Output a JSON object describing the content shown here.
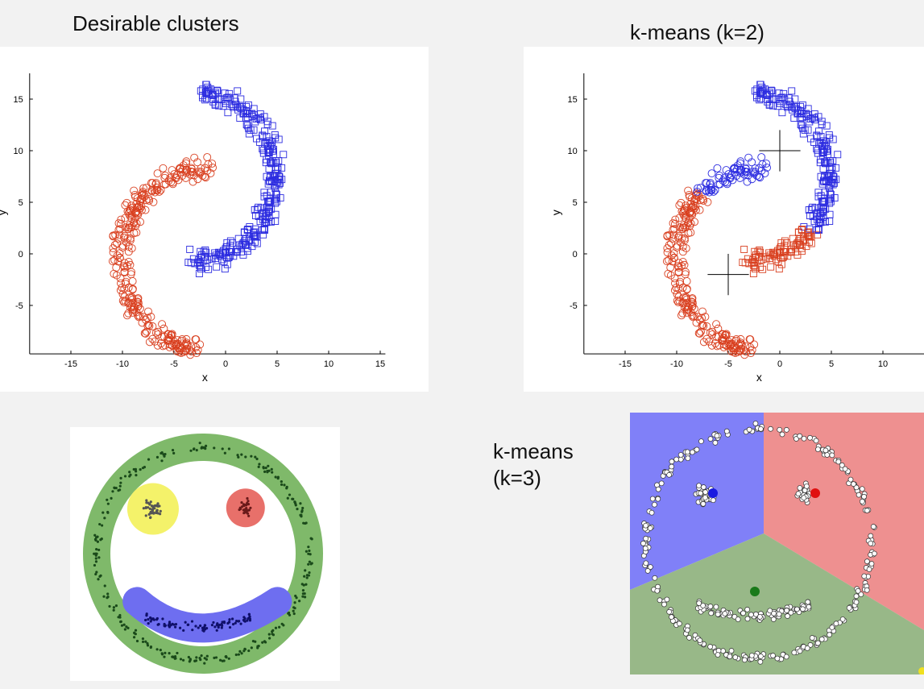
{
  "titles": {
    "desirable": "Desirable clusters",
    "kmeans2": "k-means (k=2)",
    "kmeans3_line1": "k-means",
    "kmeans3_line2": "(k=3)"
  },
  "plot_axes": {
    "xlabel": "x",
    "ylabel": "y",
    "x_ticks": [
      "-15",
      "-10",
      "-5",
      "0",
      "5",
      "10",
      "15"
    ],
    "y_ticks": [
      "15",
      "10",
      "5",
      "0",
      "-5"
    ]
  },
  "colors": {
    "red_marker": "#d94020",
    "blue_marker": "#2c2ce0",
    "green_ring": "#7fb96a",
    "yellow_eye": "#f4f26a",
    "red_eye": "#e8706a",
    "blue_mouth": "#6e6ef0",
    "region_blue": "#8080f8",
    "region_red": "#ee9090",
    "region_green": "#98b888",
    "centroid_blue": "#1a1ae0",
    "centroid_red": "#e01010",
    "centroid_green": "#1a7a1a"
  }
}
